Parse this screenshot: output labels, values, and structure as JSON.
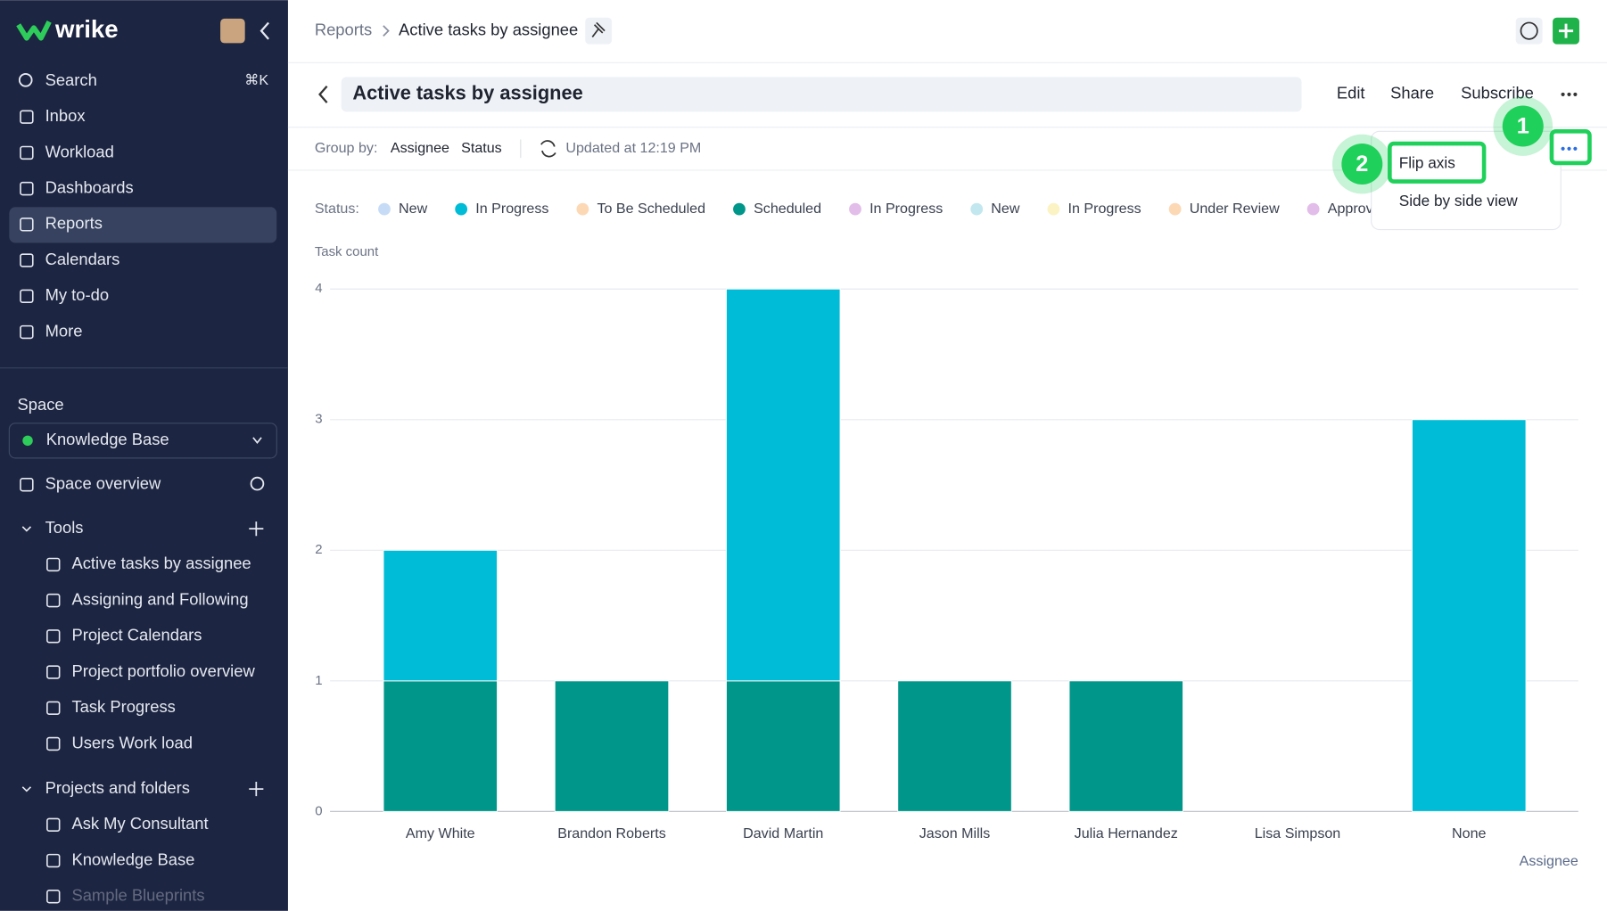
{
  "app": {
    "logo": "wrike"
  },
  "sidebar": {
    "search": "Search",
    "shortcut": "⌘K",
    "nav": [
      "Inbox",
      "Workload",
      "Dashboards",
      "Reports",
      "Calendars",
      "My to-do",
      "More"
    ],
    "space_label": "Space",
    "space": "Knowledge Base",
    "space_overview": "Space overview",
    "tools": "Tools",
    "tool_items": [
      "Active tasks by assignee",
      "Assigning and Following",
      "Project Calendars",
      "Project portfolio overview",
      "Task Progress",
      "Users Work load"
    ],
    "projects": "Projects and folders",
    "project_items": [
      "Ask My Consultant",
      "Knowledge Base",
      "Sample Blueprints"
    ]
  },
  "breadcrumb": [
    "Reports",
    "Active tasks by assignee"
  ],
  "report": {
    "title": "Active tasks by assignee",
    "actions": [
      "Edit",
      "Share",
      "Subscribe"
    ],
    "group_by_label": "Group by:",
    "group_by": [
      "Assignee",
      "Status"
    ],
    "updated": "Updated at 12:19 PM"
  },
  "menu": {
    "items": [
      "Flip axis",
      "Side by side view"
    ],
    "steps": [
      1,
      2
    ]
  },
  "chart_data": {
    "type": "stacked_bar",
    "legend_title": "Status:",
    "y_label": "Task count",
    "x_label": "Assignee",
    "categories": [
      "Amy White",
      "Brandon Roberts",
      "David Martin",
      "Jason Mills",
      "Julia Hernandez",
      "Lisa Simpson",
      "None"
    ],
    "series": [
      {
        "name": "New",
        "color": "#c6dcf6",
        "values": [
          null,
          null,
          null,
          null,
          null,
          null,
          null
        ]
      },
      {
        "name": "In Progress",
        "color": "#00bcd6",
        "values": [
          1,
          0,
          3,
          0,
          0,
          0,
          3
        ]
      },
      {
        "name": "To Be Scheduled",
        "color": "#fdd8b5",
        "values": [
          null,
          null,
          null,
          null,
          null,
          null,
          null
        ]
      },
      {
        "name": "Scheduled",
        "color": "#00978a",
        "values": [
          1,
          1,
          1,
          1,
          1,
          0,
          0
        ]
      },
      {
        "name": "In Progress",
        "color": "#e3bde9",
        "values": [
          null,
          null,
          null,
          null,
          null,
          null,
          null
        ]
      },
      {
        "name": "New",
        "color": "#c2e7ef",
        "values": [
          null,
          null,
          null,
          null,
          null,
          null,
          null
        ]
      },
      {
        "name": "In Progress",
        "color": "#fcf3c4",
        "values": [
          null,
          null,
          null,
          null,
          null,
          null,
          null
        ]
      },
      {
        "name": "Under Review",
        "color": "#fdd8b5",
        "values": [
          null,
          null,
          null,
          null,
          null,
          null,
          null
        ]
      },
      {
        "name": "Approved",
        "color": "#e3bde9",
        "values": [
          null,
          null,
          null,
          null,
          null,
          null,
          null
        ]
      }
    ],
    "ylim": [
      0,
      4
    ],
    "yticks": [
      0,
      1,
      2,
      3,
      4
    ],
    "grid": true
  }
}
